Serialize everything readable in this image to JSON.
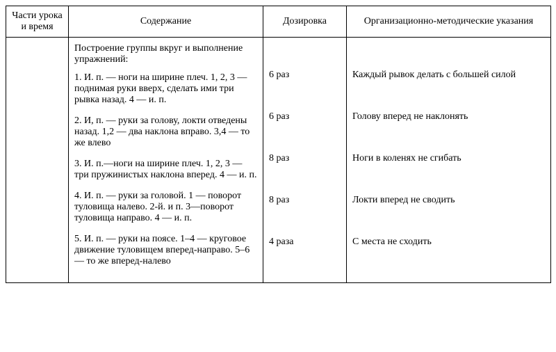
{
  "table": {
    "columns": [
      "Части урока и время",
      "Содержание",
      "Дозировка",
      "Организационно-методические указания"
    ],
    "intro": "Построение группы вкруг и выполнение упражнений:",
    "rows": [
      {
        "content": "1. И. п. — ноги на ширине плеч. 1, 2, 3 — поднимая руки вверх, сделать ими три рывка назад. 4 — и. п.",
        "dose": "6 раз",
        "note": "Каждый рывок делать с большей силой"
      },
      {
        "content": "2. И, п. — руки за голову, локти отведены назад. 1,2 — два наклона вправо. 3,4 — то же влево",
        "dose": "6 раз",
        "note": "Голову вперед не наклонять"
      },
      {
        "content": "3. И. п.—ноги на ширине плеч. 1, 2, 3 — три пружинистых наклона вперед. 4 — и. п.",
        "dose": "8 раз",
        "note": "Ноги в коленях не сгибать"
      },
      {
        "content": "4. И. п. — руки за головой. 1 — поворот туловища налево. 2-й. и п. 3—поворот туловища направо. 4 — и. п.",
        "dose": "8 раз",
        "note": "Локти вперед не сводить"
      },
      {
        "content": "5. И. п. — руки на поясе. 1–4 — круговое движение туловищем вперед-направо. 5–6 — то же вперед-налево",
        "dose": "4 раза",
        "note": "С места не сходить"
      }
    ]
  }
}
